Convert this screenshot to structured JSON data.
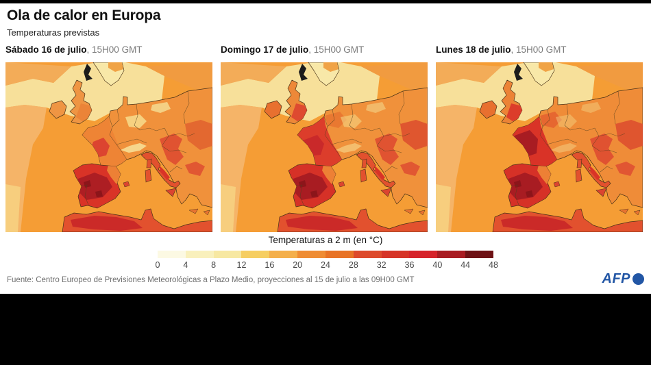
{
  "header": {
    "title": "Ola de calor en Europa",
    "subtitle": "Temperaturas previstas"
  },
  "maps": [
    {
      "date": "Sábado 16 de julio",
      "time": ", 15H00 GMT"
    },
    {
      "date": "Domingo 17 de julio",
      "time": ", 15H00 GMT"
    },
    {
      "date": "Lunes 18 de julio",
      "time": ", 15H00 GMT"
    }
  ],
  "legend": {
    "title": "Temperaturas a 2 m (en °C)",
    "ticks": [
      0,
      4,
      8,
      12,
      16,
      20,
      24,
      28,
      32,
      36,
      40,
      44,
      48
    ],
    "colors": [
      "#FCF9E3",
      "#F9F0BC",
      "#F7E8A2",
      "#F6CE61",
      "#F4AF4B",
      "#EF8C33",
      "#E87326",
      "#DD4A2C",
      "#D63427",
      "#D6232A",
      "#A81C22",
      "#6E1215"
    ]
  },
  "footer": {
    "source": "Fuente: Centro Europeo de Previsiones Meteorológicas a Plazo Medio, proyecciones al 15 de julio a las 09H00 GMT",
    "logo_text": "AFP",
    "logo_color": "#2256A5"
  }
}
